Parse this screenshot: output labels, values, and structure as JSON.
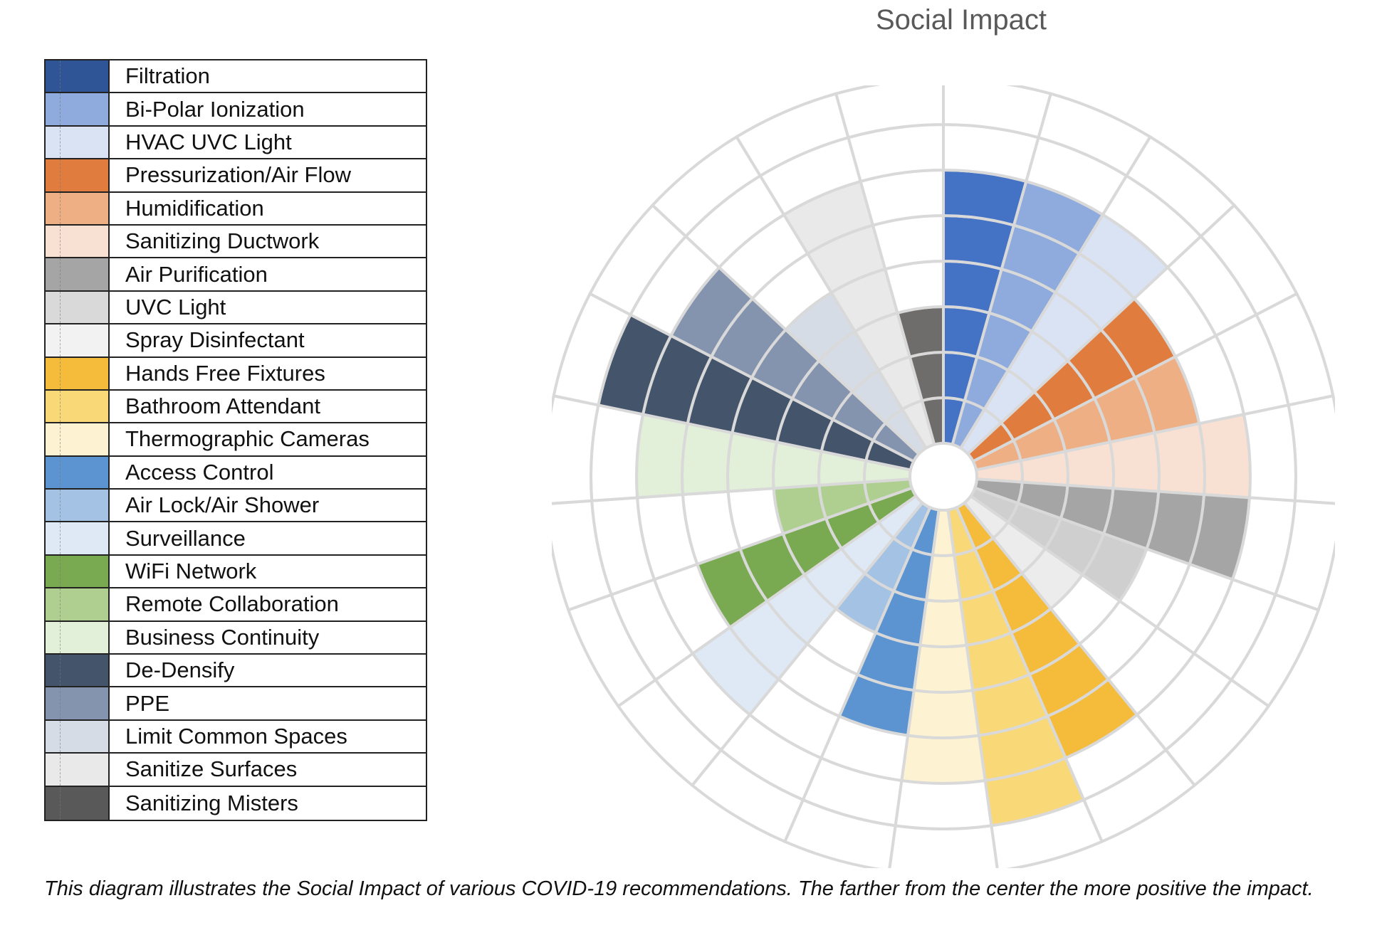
{
  "chart_data": {
    "type": "polar-area",
    "title": "Social Impact",
    "rings": 8,
    "categories": [
      "Filtration",
      "Bi-Polar Ionization",
      "HVAC UVC Light",
      "Pressurization/Air Flow",
      "Humidification",
      "Sanitizing Ductwork",
      "Air Purification",
      "UVC Light",
      "Spray Disinfectant",
      "Hands Free Fixtures",
      "Bathroom Attendant",
      "Thermographic Cameras",
      "Access Control",
      "Air Lock/Air Shower",
      "Surveillance",
      "WiFi Network",
      "Remote Collaboration",
      "Business Continuity",
      "De-Densify",
      "PPE",
      "Limit Common Spaces",
      "Sanitize Surfaces",
      "Sanitizing Misters"
    ],
    "values": [
      6,
      6,
      6,
      5,
      5,
      6,
      6,
      4,
      3,
      6,
      7,
      6,
      5,
      3,
      6,
      5,
      3,
      6,
      7,
      6,
      4,
      6,
      3
    ],
    "colors": [
      "#4472c4",
      "#8faadc",
      "#dae3f3",
      "#e07c3e",
      "#eeaf85",
      "#f8e1d3",
      "#a5a5a5",
      "#cfcfcf",
      "#ececec",
      "#f5bc3c",
      "#f9d878",
      "#fdf2d2",
      "#5b94d0",
      "#a4c2e4",
      "#dee9f5",
      "#79aa51",
      "#afcf91",
      "#e2efd9",
      "#44546a",
      "#8594ae",
      "#d6dce6",
      "#e9e9e9",
      "#6f6c6c"
    ],
    "legend_colors": [
      "#2f5597",
      "#8faadc",
      "#dae3f3",
      "#e07c3e",
      "#eeaf85",
      "#f8e1d3",
      "#a5a5a5",
      "#d9d9d9",
      "#f2f2f2",
      "#f5bc3c",
      "#f9d878",
      "#fdf2d2",
      "#5b94d0",
      "#a4c2e4",
      "#dee9f5",
      "#79aa51",
      "#afcf91",
      "#e2efd9",
      "#44546a",
      "#8594ae",
      "#d6dce6",
      "#e9e9e9",
      "#595959"
    ],
    "grid_color": "#d9d9d9",
    "legend_position": "left"
  },
  "caption": "This diagram illustrates the Social Impact of various COVID-19 recommendations. The farther from the center the more positive the impact."
}
